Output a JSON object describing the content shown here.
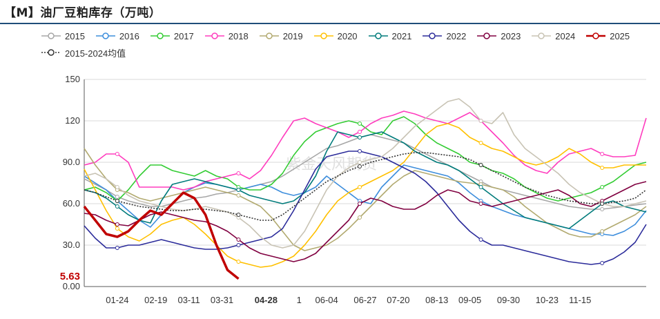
{
  "title": "【M】油厂豆粕库存（万吨）",
  "chart_data": {
    "type": "line",
    "title": "【M】油厂豆粕库存（万吨）",
    "ylim": [
      0,
      150
    ],
    "yticks": [
      "0.00",
      "30.0",
      "60.0",
      "90.0",
      "120",
      "150"
    ],
    "xlim": [
      1,
      52
    ],
    "xticks": [
      {
        "label": "01-24",
        "week": 4
      },
      {
        "label": "02-19",
        "week": 7.5
      },
      {
        "label": "03-11",
        "week": 10.5
      },
      {
        "label": "03-31",
        "week": 13.5
      },
      {
        "label": "04-28",
        "week": 17.5,
        "highlight": true
      },
      {
        "label": "1",
        "week": 20.5
      },
      {
        "label": "06-04",
        "week": 23
      },
      {
        "label": "06-27",
        "week": 26.5
      },
      {
        "label": "07-20",
        "week": 29.5
      },
      {
        "label": "08-13",
        "week": 33
      },
      {
        "label": "09-05",
        "week": 36
      },
      {
        "label": "09-30",
        "week": 39.5
      },
      {
        "label": "10-23",
        "week": 43
      },
      {
        "label": "11-15",
        "week": 46
      }
    ],
    "grid": true,
    "legend": "top",
    "callout": {
      "label": "5.63",
      "value": 5.63,
      "color": "#c00000"
    },
    "watermark": "紫金天风期货",
    "series": [
      {
        "name": "2015",
        "color": "#a6a6a6",
        "dash": "",
        "width": 1.6,
        "values": [
          78,
          74,
          70,
          65,
          62,
          60,
          58,
          58,
          60,
          62,
          64,
          65,
          67,
          68,
          70,
          72,
          74,
          76,
          80,
          85,
          90,
          95,
          100,
          102,
          105,
          108,
          110,
          108,
          106,
          104,
          100,
          96,
          92,
          88,
          84,
          80,
          76,
          72,
          70,
          68,
          66,
          64,
          62,
          60,
          58,
          57,
          56,
          56,
          57,
          58,
          59,
          60
        ]
      },
      {
        "name": "2016",
        "color": "#3c8ddc",
        "dash": "",
        "width": 1.6,
        "values": [
          80,
          75,
          70,
          62,
          55,
          48,
          43,
          52,
          60,
          68,
          72,
          75,
          74,
          72,
          70,
          72,
          74,
          72,
          68,
          66,
          68,
          72,
          80,
          74,
          68,
          62,
          60,
          72,
          80,
          88,
          86,
          84,
          82,
          80,
          75,
          68,
          62,
          58,
          55,
          52,
          50,
          48,
          46,
          44,
          42,
          40,
          38,
          38,
          37,
          40,
          45,
          55
        ]
      },
      {
        "name": "2017",
        "color": "#33cc33",
        "dash": "",
        "width": 1.6,
        "values": [
          70,
          72,
          68,
          62,
          70,
          80,
          88,
          88,
          84,
          82,
          80,
          84,
          80,
          78,
          72,
          70,
          70,
          74,
          82,
          95,
          105,
          112,
          115,
          118,
          120,
          118,
          112,
          110,
          120,
          123,
          118,
          110,
          104,
          100,
          96,
          90,
          88,
          84,
          82,
          78,
          72,
          68,
          64,
          62,
          64,
          66,
          68,
          72,
          76,
          82,
          88,
          90
        ]
      },
      {
        "name": "2018",
        "color": "#ff3cbe",
        "dash": "",
        "width": 1.6,
        "values": [
          88,
          90,
          96,
          96,
          90,
          72,
          72,
          72,
          72,
          70,
          72,
          76,
          78,
          80,
          82,
          78,
          84,
          95,
          108,
          120,
          122,
          118,
          115,
          112,
          108,
          112,
          118,
          122,
          124,
          127,
          125,
          122,
          120,
          118,
          122,
          126,
          120,
          112,
          104,
          95,
          88,
          84,
          82,
          90,
          96,
          98,
          100,
          96,
          94,
          94,
          95,
          122
        ]
      },
      {
        "name": "2019",
        "color": "#b2aa70",
        "dash": "",
        "width": 1.6,
        "values": [
          100,
          88,
          78,
          70,
          68,
          64,
          62,
          64,
          66,
          68,
          70,
          72,
          70,
          68,
          66,
          62,
          58,
          50,
          40,
          30,
          26,
          28,
          30,
          35,
          42,
          50,
          58,
          66,
          74,
          80,
          84,
          82,
          80,
          78,
          76,
          75,
          74,
          72,
          70,
          65,
          58,
          52,
          46,
          42,
          38,
          36,
          36,
          40,
          44,
          48,
          52,
          58
        ]
      },
      {
        "name": "2020",
        "color": "#ffc000",
        "dash": "",
        "width": 1.6,
        "values": [
          85,
          70,
          55,
          42,
          36,
          33,
          38,
          45,
          48,
          50,
          45,
          38,
          30,
          22,
          18,
          16,
          14,
          15,
          18,
          22,
          30,
          40,
          52,
          62,
          68,
          72,
          76,
          80,
          84,
          90,
          100,
          110,
          116,
          118,
          115,
          108,
          104,
          100,
          98,
          94,
          90,
          88,
          90,
          94,
          100,
          96,
          90,
          86,
          86,
          88,
          88,
          88
        ]
      },
      {
        "name": "2021",
        "color": "#007b7b",
        "dash": "",
        "width": 1.6,
        "values": [
          70,
          68,
          64,
          58,
          52,
          48,
          46,
          62,
          74,
          76,
          78,
          76,
          74,
          72,
          70,
          66,
          64,
          62,
          60,
          62,
          68,
          80,
          98,
          112,
          110,
          108,
          110,
          112,
          108,
          104,
          98,
          94,
          90,
          88,
          84,
          78,
          72,
          66,
          60,
          55,
          50,
          48,
          46,
          44,
          42,
          48,
          54,
          60,
          62,
          58,
          56,
          54
        ]
      },
      {
        "name": "2022",
        "color": "#2b2b9a",
        "dash": "",
        "width": 1.6,
        "values": [
          44,
          35,
          28,
          28,
          30,
          30,
          32,
          34,
          32,
          30,
          28,
          27,
          27,
          28,
          30,
          32,
          34,
          36,
          42,
          55,
          70,
          85,
          94,
          96,
          98,
          98,
          96,
          94,
          90,
          86,
          82,
          76,
          68,
          58,
          48,
          40,
          34,
          30,
          30,
          28,
          26,
          24,
          22,
          20,
          18,
          17,
          16,
          17,
          20,
          25,
          32,
          45
        ]
      },
      {
        "name": "2023",
        "color": "#800040",
        "dash": "",
        "width": 1.6,
        "values": [
          53,
          52,
          48,
          45,
          44,
          48,
          52,
          54,
          52,
          50,
          48,
          47,
          44,
          40,
          34,
          28,
          24,
          22,
          20,
          18,
          20,
          24,
          32,
          40,
          48,
          60,
          64,
          62,
          58,
          56,
          56,
          60,
          66,
          70,
          68,
          62,
          60,
          58,
          60,
          62,
          64,
          66,
          68,
          70,
          66,
          60,
          58,
          62,
          66,
          70,
          74,
          76
        ]
      },
      {
        "name": "2024",
        "color": "#c8c3b4",
        "dash": "",
        "width": 1.6,
        "values": [
          80,
          82,
          78,
          72,
          66,
          62,
          60,
          58,
          56,
          55,
          56,
          58,
          56,
          54,
          50,
          44,
          36,
          30,
          28,
          30,
          40,
          55,
          70,
          80,
          86,
          90,
          92,
          94,
          100,
          108,
          116,
          122,
          128,
          134,
          136,
          130,
          120,
          118,
          126,
          110,
          100,
          94,
          88,
          82,
          74,
          68,
          64,
          60,
          58,
          58,
          60,
          62
        ]
      },
      {
        "name": "2025",
        "color": "#c00000",
        "dash": "",
        "width": 3.5,
        "values": [
          58,
          48,
          38,
          36,
          40,
          48,
          55,
          52,
          60,
          68,
          64,
          52,
          30,
          12,
          5.63
        ]
      },
      {
        "name": "2015-2024均值",
        "color": "#333333",
        "dash": "2,2",
        "width": 1.6,
        "values": [
          70,
          68,
          65,
          62,
          60,
          58,
          57,
          56,
          55,
          55,
          56,
          56,
          55,
          54,
          52,
          50,
          48,
          48,
          52,
          58,
          64,
          70,
          76,
          80,
          84,
          87,
          90,
          92,
          94,
          96,
          97,
          97,
          96,
          95,
          94,
          92,
          88,
          84,
          80,
          76,
          72,
          69,
          66,
          64,
          62,
          61,
          60,
          60,
          61,
          62,
          64,
          70
        ]
      }
    ]
  }
}
